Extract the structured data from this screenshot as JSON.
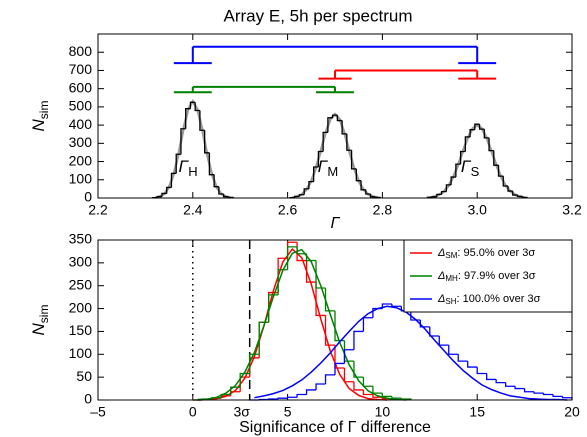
{
  "chart_data": [
    {
      "type": "histogram",
      "title": "Array E, 5h per spectrum",
      "xlabel": "Γ",
      "ylabel": "N",
      "ylabel_sub": "sim",
      "xlim": [
        2.2,
        3.2
      ],
      "ylim": [
        0,
        900
      ],
      "xticks": [
        2.2,
        2.4,
        2.6,
        2.8,
        {
          "value": 3,
          "label": "3.0"
        },
        3.2
      ],
      "yticks": [
        0,
        100,
        200,
        300,
        400,
        500,
        600,
        700,
        800
      ],
      "series": [
        {
          "color": "#000000",
          "fit_color": "#999999",
          "x": [
            2.32,
            2.33,
            2.34,
            2.35,
            2.36,
            2.37,
            2.38,
            2.39,
            2.4,
            2.41,
            2.42,
            2.43,
            2.44,
            2.45,
            2.46,
            2.47,
            2.48
          ],
          "values": [
            2,
            8,
            25,
            58,
            135,
            240,
            380,
            490,
            525,
            480,
            372,
            248,
            128,
            62,
            22,
            8,
            3
          ],
          "fit_values": [
            2,
            7,
            23,
            60,
            132,
            243,
            375,
            486,
            530,
            486,
            375,
            243,
            132,
            60,
            23,
            7,
            2
          ]
        },
        {
          "color": "#000000",
          "fit_color": "#999999",
          "x": [
            2.61,
            2.62,
            2.63,
            2.64,
            2.65,
            2.66,
            2.67,
            2.68,
            2.69,
            2.7,
            2.71,
            2.72,
            2.73,
            2.74,
            2.75,
            2.76,
            2.77,
            2.78,
            2.79
          ],
          "values": [
            2,
            9,
            18,
            50,
            90,
            170,
            255,
            360,
            440,
            455,
            425,
            352,
            262,
            160,
            95,
            45,
            22,
            7,
            3
          ],
          "fit_values": [
            3,
            8,
            20,
            47,
            93,
            166,
            259,
            356,
            432,
            460,
            432,
            356,
            259,
            166,
            93,
            47,
            20,
            8,
            3
          ]
        },
        {
          "color": "#000000",
          "fit_color": "#999999",
          "x": [
            2.9,
            2.91,
            2.92,
            2.93,
            2.94,
            2.95,
            2.96,
            2.97,
            2.98,
            2.99,
            3.0,
            3.01,
            3.02,
            3.03,
            3.04,
            3.05,
            3.06,
            3.07,
            3.08,
            3.09,
            3.1
          ],
          "values": [
            4,
            7,
            20,
            35,
            72,
            115,
            186,
            255,
            335,
            375,
            405,
            378,
            330,
            260,
            180,
            120,
            66,
            38,
            16,
            9,
            3
          ],
          "fit_values": [
            3,
            8,
            18,
            37,
            69,
            118,
            183,
            258,
            329,
            381,
            400,
            381,
            329,
            258,
            183,
            118,
            69,
            37,
            18,
            8,
            3
          ]
        }
      ],
      "brackets": [
        {
          "color": "#0000ff",
          "y": 830,
          "bar_y": 740,
          "ends": [
            {
              "x": 2.4,
              "xerr": 0.04
            },
            {
              "x": 3.0,
              "xerr": 0.04
            }
          ]
        },
        {
          "color": "#ff0000",
          "y": 700,
          "bar_y": 655,
          "ends": [
            {
              "x": 2.7,
              "xerr": 0.035
            },
            {
              "x": 3.0,
              "xerr": 0.04
            }
          ]
        },
        {
          "color": "#008000",
          "y": 610,
          "bar_y": 580,
          "ends": [
            {
              "x": 2.4,
              "xerr": 0.04
            },
            {
              "x": 2.7,
              "xerr": 0.04
            }
          ]
        }
      ],
      "annotations": [
        {
          "text": "Γ",
          "sub": "H",
          "x": 2.39,
          "y": 165
        },
        {
          "text": "Γ",
          "sub": "M",
          "x": 2.685,
          "y": 165
        },
        {
          "text": "Γ",
          "sub": "S",
          "x": 2.985,
          "y": 165
        }
      ]
    },
    {
      "type": "histogram",
      "xlabel": "Significance of Γ difference",
      "ylabel": "N",
      "ylabel_sub": "sim",
      "xlim": [
        -5,
        20
      ],
      "ylim": [
        0,
        350
      ],
      "xticks": [
        {
          "value": -5,
          "label": "–5"
        },
        0,
        5,
        10,
        15,
        20
      ],
      "yticks": [
        0,
        50,
        100,
        150,
        200,
        250,
        300,
        350
      ],
      "vlines": [
        {
          "x": 0,
          "style": "dotted"
        },
        {
          "x": 3,
          "style": "dashed",
          "label": "3σ"
        }
      ],
      "legend": "upper right",
      "series": [
        {
          "name": "Δ",
          "name_sub": "SM",
          "name_rest": ": 95.0% over 3σ",
          "color": "#ff0000",
          "x": [
            0.25,
            0.75,
            1.25,
            1.75,
            2.25,
            2.75,
            3.25,
            3.75,
            4.25,
            4.75,
            5.25,
            5.75,
            6.25,
            6.75,
            7.25,
            7.75,
            8.25,
            8.75,
            9.25,
            9.75,
            10.25
          ],
          "values": [
            0,
            1,
            4,
            9,
            18,
            50,
            92,
            170,
            235,
            310,
            345,
            305,
            258,
            185,
            120,
            70,
            40,
            22,
            12,
            6,
            3
          ],
          "fit_values": [
            0,
            1,
            3,
            8,
            21,
            48,
            95,
            162,
            239,
            302,
            330,
            311,
            253,
            177,
            107,
            56,
            25,
            10,
            3,
            1,
            0
          ]
        },
        {
          "name": "Δ",
          "name_sub": "MH",
          "name_rest": ": 97.9% over 3σ",
          "color": "#008000",
          "x": [
            0.25,
            0.75,
            1.25,
            1.75,
            2.25,
            2.75,
            3.25,
            3.75,
            4.25,
            4.75,
            5.25,
            5.75,
            6.25,
            6.75,
            7.25,
            7.75,
            8.25,
            8.75,
            9.25,
            9.75,
            10.25,
            10.75,
            11.25
          ],
          "values": [
            0,
            2,
            5,
            12,
            28,
            58,
            100,
            170,
            230,
            285,
            335,
            320,
            305,
            245,
            195,
            130,
            85,
            50,
            30,
            15,
            8,
            4,
            2
          ],
          "fit_values": [
            1,
            2,
            6,
            15,
            32,
            61,
            104,
            162,
            226,
            284,
            321,
            329,
            302,
            250,
            187,
            126,
            77,
            42,
            20,
            9,
            4,
            1,
            0
          ]
        },
        {
          "name": "Δ",
          "name_sub": "SH",
          "name_rest": ": 100.0% over 3σ",
          "color": "#0000ff",
          "x": [
            3.25,
            3.75,
            4.25,
            4.75,
            5.25,
            5.75,
            6.25,
            6.75,
            7.25,
            7.75,
            8.25,
            8.75,
            9.25,
            9.75,
            10.25,
            10.75,
            11.25,
            11.75,
            12.25,
            12.75,
            13.25,
            13.75,
            14.25,
            14.75,
            15.25,
            15.75,
            16.25,
            16.75,
            17.25,
            17.75,
            18.25,
            18.75,
            19.25,
            19.75
          ],
          "values": [
            0,
            1,
            2,
            4,
            6,
            12,
            22,
            35,
            55,
            80,
            110,
            150,
            180,
            200,
            210,
            205,
            195,
            175,
            160,
            140,
            120,
            100,
            85,
            72,
            58,
            45,
            38,
            30,
            25,
            18,
            15,
            12,
            8,
            5
          ],
          "fit_values": [
            5,
            9,
            14,
            21,
            31,
            44,
            61,
            81,
            103,
            127,
            150,
            172,
            189,
            200,
            205,
            202,
            192,
            176,
            155,
            131,
            108,
            85,
            65,
            48,
            33,
            23,
            15,
            9,
            6,
            3,
            2,
            1,
            1,
            0
          ]
        }
      ]
    }
  ]
}
